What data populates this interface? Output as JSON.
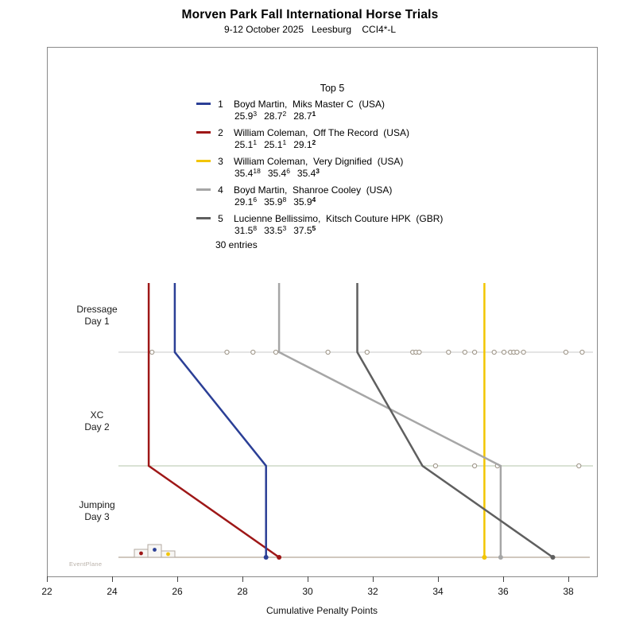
{
  "header": {
    "title": "Morven Park Fall International Horse Trials",
    "subtitle": "9-12 October 2025   Leesburg    CCI4*-L"
  },
  "legend": {
    "title": "Top 5",
    "entries_note": "30 entries"
  },
  "watermark": "EventPlane",
  "chart_data": {
    "type": "line",
    "title": "Top 5",
    "xlabel": "Cumulative Penalty Points",
    "xlim": [
      22,
      38.9
    ],
    "xticks": [
      22,
      24,
      26,
      28,
      30,
      32,
      34,
      36,
      38
    ],
    "phases": [
      {
        "name": "Dressage",
        "day": "Day 1"
      },
      {
        "name": "XC",
        "day": "Day 2"
      },
      {
        "name": "Jumping",
        "day": "Day 3"
      }
    ],
    "series": [
      {
        "rank": 1,
        "rider": "Boyd Martin",
        "horse": "Miks Master C",
        "country": "USA",
        "color": "#2b3f96",
        "scores": [
          25.9,
          28.7,
          28.7
        ],
        "places": [
          3,
          2,
          1
        ]
      },
      {
        "rank": 2,
        "rider": "William Coleman",
        "horse": "Off The Record",
        "country": "USA",
        "color": "#9e1717",
        "scores": [
          25.1,
          25.1,
          29.1
        ],
        "places": [
          1,
          1,
          2
        ]
      },
      {
        "rank": 3,
        "rider": "William Coleman",
        "horse": "Very Dignified",
        "country": "USA",
        "color": "#f2c500",
        "scores": [
          35.4,
          35.4,
          35.4
        ],
        "places": [
          18,
          6,
          3
        ]
      },
      {
        "rank": 4,
        "rider": "Boyd Martin",
        "horse": "Shanroe Cooley",
        "country": "USA",
        "color": "#a6a6a6",
        "scores": [
          29.1,
          35.9,
          35.9
        ],
        "places": [
          6,
          8,
          4
        ]
      },
      {
        "rank": 5,
        "rider": "Lucienne Bellissimo",
        "horse": "Kitsch Couture HPK",
        "country": "GBR",
        "color": "#5f5f5f",
        "scores": [
          31.5,
          33.5,
          37.5
        ],
        "places": [
          8,
          3,
          5
        ]
      }
    ],
    "other_entry_marks": {
      "dressage": [
        25.2,
        27.5,
        28.3,
        29.0,
        30.6,
        31.8,
        33.2,
        33.3,
        33.4,
        34.3,
        34.8,
        35.1,
        35.7,
        36.0,
        36.2,
        36.3,
        36.4,
        36.6,
        37.9,
        38.4
      ],
      "xc": [
        33.9,
        35.1,
        35.8,
        38.3
      ]
    },
    "phase_line_colors": {
      "dressage": "#c9c9c9",
      "xc": "#b5c6ab",
      "final": "#b3a698"
    },
    "mark_color": "#9a9183",
    "entries_total": 30
  }
}
